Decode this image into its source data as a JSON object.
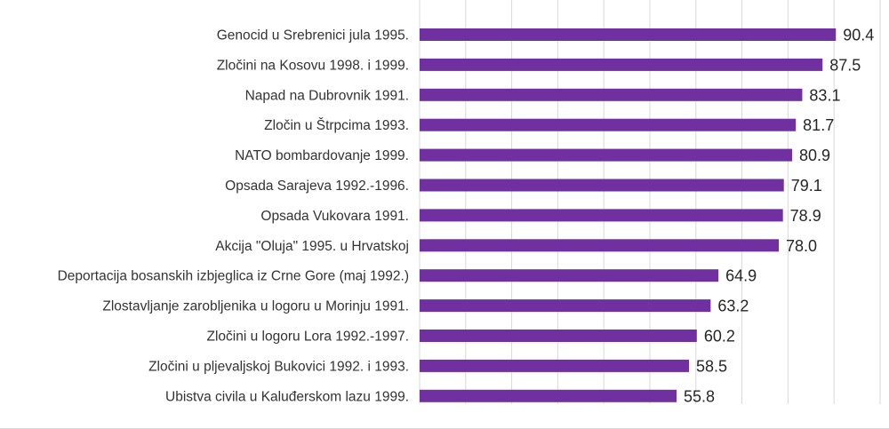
{
  "chart_data": {
    "type": "bar",
    "orientation": "horizontal",
    "categories": [
      "Genocid u Srebrenici jula 1995.",
      "Zločini na Kosovu 1998. i 1999.",
      "Napad na Dubrovnik 1991.",
      "Zločin u Štrpcima 1993.",
      "NATO bombardovanje 1999.",
      "Opsada Sarajeva 1992.-1996.",
      "Opsada Vukovara 1991.",
      "Akcija \"Oluja\" 1995. u Hrvatskoj",
      "Deportacija bosanskih izbjeglica iz Crne Gore (maj 1992.)",
      "Zlostavljanje zarobljenika u logoru u Morinju 1991.",
      "Zločini u logoru Lora 1992.-1997.",
      "Zločini u pljevaljskoj Bukovici 1992. i 1993.",
      "Ubistva civila u Kaluđerskom lazu 1999."
    ],
    "values": [
      90.4,
      87.5,
      83.1,
      81.7,
      80.9,
      79.1,
      78.9,
      78.0,
      64.9,
      63.2,
      60.2,
      58.5,
      55.8
    ],
    "value_labels": [
      "90.4",
      "87.5",
      "83.1",
      "81.7",
      "80.9",
      "79.1",
      "78.9",
      "78.0",
      "64.9",
      "63.2",
      "60.2",
      "58.5",
      "55.8"
    ],
    "xlim": [
      0,
      100
    ],
    "grid": true,
    "bar_color": "#7030a0",
    "grid_color": "#d9d9d9"
  }
}
